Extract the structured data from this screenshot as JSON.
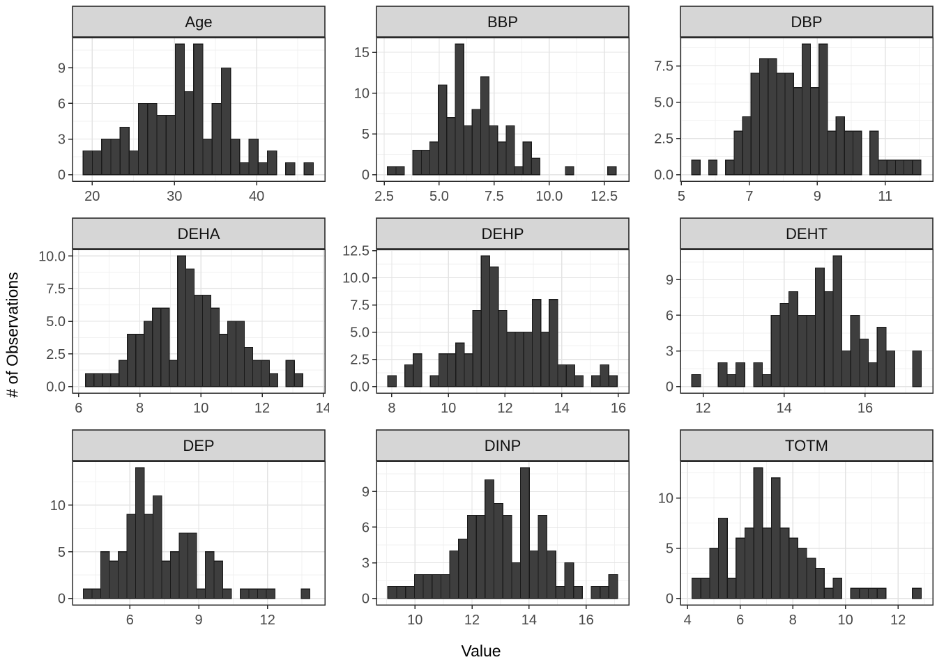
{
  "chart_data": {
    "type": "bar",
    "subtype": "faceted-histogram",
    "title": "",
    "xlabel": "Value",
    "ylabel": "# of Observations",
    "grid": true,
    "legend": "none",
    "style": {
      "bar_fill": "#3E3E3E",
      "bar_stroke": "#1A1A1A",
      "panel_bg": "#FFFFFF",
      "panel_border": "#2A2A2A",
      "grid_major": "#E3E3E3",
      "grid_minor": "#F1F1F1",
      "strip_bg": "#D6D6D6",
      "strip_border": "#2A2A2A",
      "strip_text": "#111111",
      "tick_color": "#2A2A2A",
      "tick_label_color": "#474747",
      "axis_title_color": "#000000"
    },
    "facets": [
      {
        "label": "Age",
        "x0": 18.9,
        "binwidth": 1.12,
        "counts": [
          2,
          2,
          3,
          3,
          4,
          2,
          6,
          6,
          5,
          5,
          11,
          7,
          11,
          3,
          6,
          9,
          3,
          1,
          3,
          1,
          2,
          0,
          1,
          0,
          1
        ],
        "xlim": [
          17.6,
          48.3
        ],
        "xticks": [
          20,
          30,
          40
        ],
        "xtick_labels": [
          "20",
          "30",
          "40"
        ],
        "ymax": 11,
        "yticks": [
          0,
          3,
          6,
          9
        ],
        "ytick_labels": [
          "0",
          "3",
          "6",
          "9"
        ]
      },
      {
        "label": "BBP",
        "x0": 2.65,
        "binwidth": 0.385,
        "counts": [
          1,
          1,
          0,
          3,
          3,
          4,
          11,
          7,
          16,
          6,
          8,
          12,
          6,
          4,
          6,
          1,
          4,
          2,
          0,
          0,
          0,
          1,
          0,
          0,
          0,
          0,
          1
        ],
        "xlim": [
          2.15,
          13.62
        ],
        "xticks": [
          2.5,
          5,
          7.5,
          10,
          12.5
        ],
        "xtick_labels": [
          "2.5",
          "5.0",
          "7.5",
          "10.0",
          "12.5"
        ],
        "ymax": 16,
        "yticks": [
          0,
          5,
          10,
          15
        ],
        "ytick_labels": [
          "0",
          "5",
          "10",
          "15"
        ]
      },
      {
        "label": "DBP",
        "x0": 5.3,
        "binwidth": 0.25,
        "counts": [
          1,
          0,
          1,
          0,
          1,
          3,
          4,
          7,
          8,
          8,
          7,
          7,
          6,
          9,
          6,
          9,
          3,
          4,
          3,
          3,
          0,
          3,
          1,
          1,
          1,
          1,
          1
        ],
        "xlim": [
          4.97,
          12.4
        ],
        "xticks": [
          5,
          7,
          9,
          11
        ],
        "xtick_labels": [
          "5",
          "7",
          "9",
          "11"
        ],
        "ymax": 9,
        "yticks": [
          0,
          2.5,
          5,
          7.5
        ],
        "ytick_labels": [
          "0.0",
          "2.5",
          "5.0",
          "7.5"
        ]
      },
      {
        "label": "DEHA",
        "x0": 6.23,
        "binwidth": 0.273,
        "counts": [
          1,
          1,
          1,
          1,
          2,
          4,
          4,
          5,
          6,
          6,
          2,
          10,
          9,
          7,
          7,
          6,
          4,
          5,
          5,
          3,
          2,
          2,
          1,
          0,
          2,
          1
        ],
        "xlim": [
          5.8,
          14.05
        ],
        "xticks": [
          6,
          8,
          10,
          12,
          14
        ],
        "xtick_labels": [
          "6",
          "8",
          "10",
          "12",
          "14"
        ],
        "ymax": 10,
        "yticks": [
          0,
          2.5,
          5,
          7.5,
          10
        ],
        "ytick_labels": [
          "0.0",
          "2.5",
          "5.0",
          "7.5",
          "10.0"
        ]
      },
      {
        "label": "DEHP",
        "x0": 7.86,
        "binwidth": 0.3,
        "counts": [
          1,
          0,
          2,
          3,
          0,
          1,
          3,
          3,
          4,
          3,
          7,
          12,
          11,
          7,
          5,
          5,
          5,
          8,
          5,
          8,
          2,
          2,
          1,
          0,
          1,
          2,
          1
        ],
        "xlim": [
          7.46,
          16.37
        ],
        "xticks": [
          8,
          10,
          12,
          14,
          16
        ],
        "xtick_labels": [
          "8",
          "10",
          "12",
          "14",
          "16"
        ],
        "ymax": 12,
        "yticks": [
          0,
          2.5,
          5,
          7.5,
          10,
          12.5
        ],
        "ytick_labels": [
          "0.0",
          "2.5",
          "5.0",
          "7.5",
          "10.0",
          "12.5"
        ]
      },
      {
        "label": "DEHT",
        "x0": 11.72,
        "binwidth": 0.218,
        "counts": [
          1,
          0,
          0,
          2,
          1,
          2,
          0,
          2,
          1,
          6,
          7,
          8,
          6,
          6,
          10,
          8,
          11,
          3,
          6,
          4,
          2,
          5,
          3,
          0,
          0,
          3
        ],
        "xlim": [
          11.44,
          17.67
        ],
        "xticks": [
          12,
          14,
          16
        ],
        "xtick_labels": [
          "12",
          "14",
          "16"
        ],
        "ymax": 11,
        "yticks": [
          0,
          3,
          6,
          9
        ],
        "ytick_labels": [
          "0",
          "3",
          "6",
          "9"
        ]
      },
      {
        "label": "DEP",
        "x0": 3.97,
        "binwidth": 0.38,
        "counts": [
          1,
          1,
          5,
          4,
          5,
          9,
          14,
          9,
          11,
          4,
          5,
          7,
          7,
          1,
          5,
          4,
          1,
          0,
          1,
          1,
          1,
          1,
          0,
          0,
          0,
          1
        ],
        "xlim": [
          3.5,
          14.5
        ],
        "xticks": [
          6,
          9,
          12
        ],
        "xtick_labels": [
          "6",
          "9",
          "12"
        ],
        "ymax": 14,
        "yticks": [
          0,
          5,
          10
        ],
        "ytick_labels": [
          "0",
          "5",
          "10"
        ]
      },
      {
        "label": "DINP",
        "x0": 9.05,
        "binwidth": 0.31,
        "counts": [
          1,
          1,
          1,
          2,
          2,
          2,
          2,
          4,
          5,
          7,
          7,
          10,
          8,
          7,
          3,
          11,
          4,
          7,
          4,
          1,
          3,
          1,
          0,
          1,
          1,
          2
        ],
        "xlim": [
          8.65,
          17.5
        ],
        "xticks": [
          10,
          12,
          14,
          16
        ],
        "xtick_labels": [
          "10",
          "12",
          "14",
          "16"
        ],
        "ymax": 11,
        "yticks": [
          0,
          3,
          6,
          9
        ],
        "ytick_labels": [
          "0",
          "3",
          "6",
          "9"
        ]
      },
      {
        "label": "TOTM",
        "x0": 4.17,
        "binwidth": 0.335,
        "counts": [
          2,
          2,
          5,
          8,
          2,
          6,
          7,
          13,
          7,
          12,
          7,
          6,
          5,
          4,
          3,
          1,
          2,
          0,
          1,
          1,
          1,
          1,
          0,
          0,
          0,
          1
        ],
        "xlim": [
          3.73,
          13.32
        ],
        "xticks": [
          4,
          6,
          8,
          10,
          12
        ],
        "xtick_labels": [
          "4",
          "6",
          "8",
          "10",
          "12"
        ],
        "ymax": 13,
        "yticks": [
          0,
          5,
          10
        ],
        "ytick_labels": [
          "0",
          "5",
          "10"
        ]
      }
    ]
  }
}
